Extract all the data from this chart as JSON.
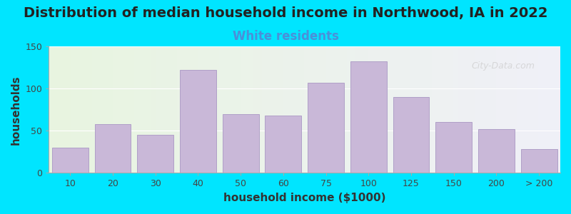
{
  "title": "Distribution of median household income in Northwood, IA in 2022",
  "subtitle": "White residents",
  "xlabel": "household income ($1000)",
  "ylabel": "households",
  "bar_color": "#c9b8d8",
  "bar_edge_color": "#b0a0c8",
  "background_color": "#00e5ff",
  "plot_bg_left": "#e8f5e0",
  "plot_bg_right": "#f0f0f8",
  "categories": [
    "10",
    "20",
    "30",
    "40",
    "50",
    "60",
    "75",
    "100",
    "125",
    "150",
    "200",
    "> 200"
  ],
  "values": [
    30,
    58,
    45,
    122,
    70,
    68,
    107,
    132,
    90,
    60,
    52,
    28
  ],
  "ylim": [
    0,
    150
  ],
  "yticks": [
    0,
    50,
    100,
    150
  ],
  "title_fontsize": 14,
  "subtitle_fontsize": 12,
  "subtitle_color": "#4a90d9",
  "axis_label_fontsize": 11,
  "tick_fontsize": 9,
  "watermark_text": "City-Data.com"
}
